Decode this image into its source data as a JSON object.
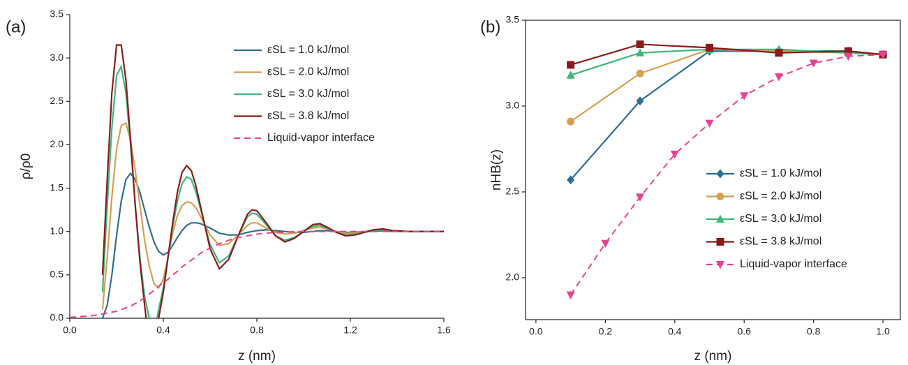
{
  "chart_data": [
    {
      "type": "line",
      "panel_label": "(a)",
      "xlabel": "z (nm)",
      "ylabel": "ρ/ρ0",
      "xlim": [
        0,
        1.6
      ],
      "ylim": [
        0,
        3.5
      ],
      "xticks": [
        {
          "value": 0,
          "label": "0.0"
        },
        0.4,
        0.8,
        1.2,
        1.6
      ],
      "yticks": [
        {
          "value": 0,
          "label": "0.0"
        },
        0.5,
        {
          "value": 1,
          "label": "1.0"
        },
        1.5,
        {
          "value": 2,
          "label": "2.0"
        },
        2.5,
        {
          "value": 3,
          "label": "3.0"
        },
        3.5
      ],
      "x": [
        0,
        0.05,
        0.1,
        0.12,
        0.14,
        0.16,
        0.18,
        0.2,
        0.22,
        0.24,
        0.26,
        0.28,
        0.3,
        0.32,
        0.34,
        0.36,
        0.38,
        0.4,
        0.42,
        0.44,
        0.46,
        0.48,
        0.5,
        0.52,
        0.54,
        0.56,
        0.6,
        0.64,
        0.68,
        0.72,
        0.76,
        0.78,
        0.8,
        0.84,
        0.88,
        0.92,
        0.96,
        1.0,
        1.04,
        1.07,
        1.1,
        1.14,
        1.18,
        1.22,
        1.26,
        1.3,
        1.34,
        1.38,
        1.45,
        1.52,
        1.6
      ],
      "series": [
        {
          "name": "εSL = 1.0 kJ/mol",
          "color": "#2d6e96",
          "values": [
            null,
            null,
            null,
            null,
            0.0,
            0.15,
            0.5,
            0.95,
            1.35,
            1.6,
            1.67,
            1.6,
            1.45,
            1.25,
            1.05,
            0.88,
            0.77,
            0.73,
            0.76,
            0.84,
            0.93,
            1.01,
            1.07,
            1.1,
            1.1,
            1.09,
            1.04,
            0.98,
            0.96,
            0.96,
            0.99,
            1.0,
            1.01,
            1.02,
            1.01,
            1.0,
            0.99,
            0.99,
            1.0,
            1.01,
            1.01,
            1.0,
            0.99,
            0.99,
            1.0,
            1.0,
            1.01,
            1.0,
            1.0,
            1.0,
            1.0
          ]
        },
        {
          "name": "εSL = 2.0 kJ/mol",
          "color": "#d4a054",
          "values": [
            null,
            null,
            null,
            null,
            0.1,
            0.7,
            1.4,
            1.95,
            2.22,
            2.25,
            2.05,
            1.7,
            1.3,
            0.9,
            0.6,
            0.4,
            0.35,
            0.45,
            0.7,
            0.98,
            1.18,
            1.3,
            1.34,
            1.33,
            1.27,
            1.17,
            0.96,
            0.84,
            0.86,
            0.96,
            1.07,
            1.1,
            1.1,
            1.04,
            0.99,
            0.97,
            0.98,
            1.01,
            1.04,
            1.05,
            1.03,
            1.0,
            0.98,
            0.98,
            1.0,
            1.01,
            1.02,
            1.01,
            1.0,
            1.0,
            1.0
          ]
        },
        {
          "name": "εSL = 3.0 kJ/mol",
          "color": "#3cb878",
          "values": [
            null,
            null,
            null,
            null,
            0.3,
            1.3,
            2.2,
            2.8,
            2.9,
            2.6,
            2.0,
            1.3,
            0.7,
            0.25,
            0.0,
            -0.2,
            0.1,
            0.35,
            0.7,
            1.05,
            1.35,
            1.55,
            1.63,
            1.6,
            1.45,
            1.25,
            0.85,
            0.64,
            0.72,
            0.95,
            1.17,
            1.21,
            1.2,
            1.08,
            0.95,
            0.9,
            0.93,
            1.0,
            1.06,
            1.07,
            1.04,
            0.99,
            0.96,
            0.97,
            0.99,
            1.01,
            1.02,
            1.01,
            1.0,
            1.0,
            1.0
          ]
        },
        {
          "name": "εSL = 3.8 kJ/mol",
          "color": "#8b1a1a",
          "values": [
            null,
            null,
            null,
            null,
            0.5,
            1.6,
            2.6,
            3.15,
            3.15,
            2.75,
            2.05,
            1.3,
            0.65,
            0.15,
            -0.3,
            -0.3,
            0.0,
            0.3,
            0.7,
            1.1,
            1.45,
            1.68,
            1.76,
            1.7,
            1.52,
            1.28,
            0.8,
            0.57,
            0.68,
            0.95,
            1.2,
            1.25,
            1.24,
            1.1,
            0.95,
            0.88,
            0.92,
            1.0,
            1.08,
            1.09,
            1.05,
            0.99,
            0.95,
            0.96,
            0.99,
            1.02,
            1.03,
            1.01,
            1.0,
            1.0,
            1.0
          ]
        },
        {
          "name": "Liquid-vapor interface",
          "color": "#e84393",
          "dash": true,
          "values": [
            0.01,
            0.02,
            0.03,
            0.04,
            0.05,
            0.06,
            0.07,
            0.08,
            0.1,
            0.12,
            0.14,
            0.17,
            0.2,
            0.24,
            0.28,
            0.32,
            0.37,
            0.41,
            0.45,
            0.5,
            0.54,
            0.59,
            0.63,
            0.67,
            0.71,
            0.75,
            0.81,
            0.86,
            0.9,
            0.93,
            0.95,
            0.96,
            0.97,
            0.98,
            0.99,
            0.99,
            1.0,
            1.0,
            1.0,
            1.0,
            1.0,
            1.0,
            1.0,
            1.0,
            1.0,
            1.0,
            1.0,
            1.0,
            1.0,
            1.0,
            1.0
          ]
        }
      ]
    },
    {
      "type": "line",
      "panel_label": "(b)",
      "xlabel": "z (nm)",
      "ylabel": "nHB(z)",
      "box": true,
      "xlim": [
        -0.03,
        1.05
      ],
      "ylim": [
        1.756,
        3.5
      ],
      "xticks": [
        {
          "value": 0,
          "label": "0.0"
        },
        0.2,
        0.4,
        0.6,
        0.8,
        {
          "value": 1,
          "label": "1.0"
        }
      ],
      "yticks": [
        {
          "value": 2,
          "label": "2.0"
        },
        2.5,
        {
          "value": 3,
          "label": "3.0"
        },
        3.5
      ],
      "series": [
        {
          "name": "εSL = 1.0 kJ/mol",
          "color": "#2d6e96",
          "marker": "diamond",
          "x": [
            0.1,
            0.3,
            0.5,
            0.7,
            0.9,
            1.0
          ],
          "values": [
            2.57,
            3.03,
            3.32,
            3.32,
            3.32,
            3.3
          ]
        },
        {
          "name": "εSL = 2.0 kJ/mol",
          "color": "#d4a054",
          "marker": "circle",
          "x": [
            0.1,
            0.3,
            0.5,
            0.7,
            0.9,
            1.0
          ],
          "values": [
            2.91,
            3.19,
            3.33,
            3.32,
            3.31,
            3.3
          ]
        },
        {
          "name": "εSL = 3.0 kJ/mol",
          "color": "#3cb878",
          "marker": "triangle-up",
          "x": [
            0.1,
            0.3,
            0.5,
            0.7,
            0.9,
            1.0
          ],
          "values": [
            3.18,
            3.31,
            3.33,
            3.33,
            3.31,
            3.3
          ]
        },
        {
          "name": "εSL = 3.8 kJ/mol",
          "color": "#8b1a1a",
          "marker": "square",
          "x": [
            0.1,
            0.3,
            0.5,
            0.7,
            0.9,
            1.0
          ],
          "values": [
            3.24,
            3.36,
            3.34,
            3.31,
            3.32,
            3.3
          ]
        },
        {
          "name": "Liquid-vapor interface",
          "color": "#e84393",
          "marker": "triangle-down",
          "dash": true,
          "x": [
            0.1,
            0.2,
            0.3,
            0.4,
            0.5,
            0.6,
            0.7,
            0.8,
            0.9,
            1.0
          ],
          "values": [
            1.9,
            2.2,
            2.47,
            2.72,
            2.9,
            3.06,
            3.17,
            3.25,
            3.29,
            3.3
          ]
        }
      ]
    }
  ]
}
